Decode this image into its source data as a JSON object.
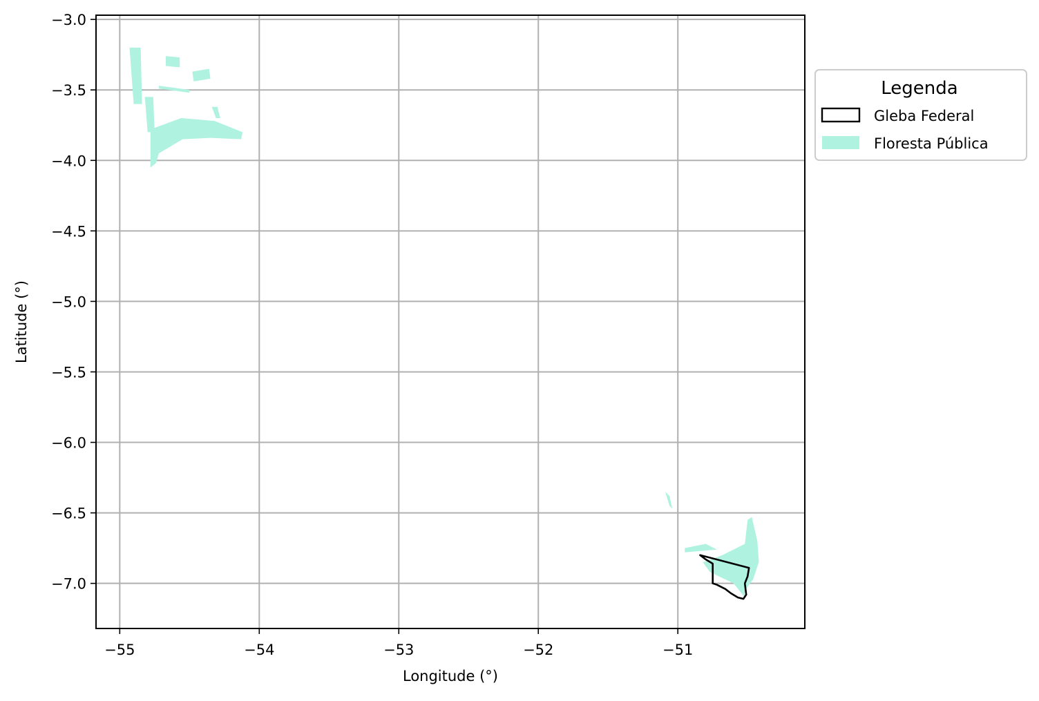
{
  "chart_data": {
    "type": "map",
    "title": "",
    "xlabel": "Longitude (°)",
    "ylabel": "Latitude (°)",
    "xlim": [
      -55.17,
      -50.09
    ],
    "ylim": [
      -7.32,
      -2.97
    ],
    "grid": true,
    "xticks": [
      -55,
      -54,
      -53,
      -52,
      -51
    ],
    "yticks": [
      -3.0,
      -3.5,
      -4.0,
      -4.5,
      -5.0,
      -5.5,
      -6.0,
      -6.5,
      -7.0
    ],
    "xtick_labels": [
      "−55",
      "−54",
      "−53",
      "−52",
      "−51"
    ],
    "ytick_labels": [
      "−3.0",
      "−3.5",
      "−4.0",
      "−4.5",
      "−5.0",
      "−5.5",
      "−6.0",
      "−6.5",
      "−7.0"
    ],
    "legend": {
      "title": "Legenda",
      "placement": "outside-upper-right",
      "entries": [
        {
          "label": "Gleba Federal",
          "style": "outline",
          "color": "#000000"
        },
        {
          "label": "Floresta Pública",
          "style": "fill",
          "color": "#aef2df"
        }
      ]
    },
    "layers": {
      "floresta_publica": {
        "color": "#aef2df",
        "features": [
          {
            "name": "nw-1",
            "coords": [
              [
                -54.93,
                -3.2
              ],
              [
                -54.85,
                -3.2
              ],
              [
                -54.84,
                -3.6
              ],
              [
                -54.9,
                -3.6
              ]
            ]
          },
          {
            "name": "nw-2",
            "coords": [
              [
                -54.82,
                -3.55
              ],
              [
                -54.76,
                -3.55
              ],
              [
                -54.75,
                -3.8
              ],
              [
                -54.8,
                -3.8
              ]
            ]
          },
          {
            "name": "nw-3",
            "coords": [
              [
                -54.67,
                -3.26
              ],
              [
                -54.57,
                -3.27
              ],
              [
                -54.57,
                -3.34
              ],
              [
                -54.67,
                -3.33
              ]
            ]
          },
          {
            "name": "nw-4",
            "coords": [
              [
                -54.48,
                -3.37
              ],
              [
                -54.36,
                -3.35
              ],
              [
                -54.35,
                -3.42
              ],
              [
                -54.47,
                -3.44
              ]
            ]
          },
          {
            "name": "nw-5",
            "coords": [
              [
                -54.34,
                -3.62
              ],
              [
                -54.3,
                -3.62
              ],
              [
                -54.28,
                -3.7
              ],
              [
                -54.31,
                -3.7
              ]
            ]
          },
          {
            "name": "nw-6",
            "coords": [
              [
                -54.78,
                -3.78
              ],
              [
                -54.56,
                -3.7
              ],
              [
                -54.32,
                -3.72
              ],
              [
                -54.12,
                -3.8
              ],
              [
                -54.13,
                -3.85
              ],
              [
                -54.35,
                -3.84
              ],
              [
                -54.55,
                -3.85
              ],
              [
                -54.72,
                -3.95
              ],
              [
                -54.74,
                -4.02
              ],
              [
                -54.78,
                -4.05
              ]
            ]
          },
          {
            "name": "nw-7",
            "coords": [
              [
                -54.72,
                -3.47
              ],
              [
                -54.5,
                -3.5
              ],
              [
                -54.5,
                -3.52
              ],
              [
                -54.72,
                -3.49
              ]
            ]
          },
          {
            "name": "se-1",
            "coords": [
              [
                -50.68,
                -6.8
              ],
              [
                -50.52,
                -6.72
              ],
              [
                -50.5,
                -6.55
              ],
              [
                -50.47,
                -6.53
              ],
              [
                -50.43,
                -6.7
              ],
              [
                -50.42,
                -6.85
              ],
              [
                -50.46,
                -6.97
              ],
              [
                -50.52,
                -7.05
              ],
              [
                -50.52,
                -7.1
              ],
              [
                -50.6,
                -7.0
              ],
              [
                -50.77,
                -6.92
              ],
              [
                -50.82,
                -6.85
              ]
            ]
          },
          {
            "name": "se-2",
            "coords": [
              [
                -50.95,
                -6.75
              ],
              [
                -50.8,
                -6.72
              ],
              [
                -50.72,
                -6.76
              ],
              [
                -50.95,
                -6.78
              ]
            ]
          },
          {
            "name": "se-3",
            "coords": [
              [
                -51.09,
                -6.35
              ],
              [
                -51.06,
                -6.38
              ],
              [
                -51.04,
                -6.47
              ],
              [
                -51.06,
                -6.45
              ]
            ]
          }
        ]
      },
      "gleba_federal": {
        "color": "#000000",
        "features": [
          {
            "name": "gleba-1",
            "coords": [
              [
                -50.84,
                -6.8
              ],
              [
                -50.49,
                -6.89
              ],
              [
                -50.5,
                -6.95
              ],
              [
                -50.52,
                -7.0
              ],
              [
                -50.51,
                -7.08
              ],
              [
                -50.53,
                -7.11
              ],
              [
                -50.57,
                -7.1
              ],
              [
                -50.62,
                -7.07
              ],
              [
                -50.66,
                -7.04
              ],
              [
                -50.72,
                -7.01
              ],
              [
                -50.75,
                -7.0
              ],
              [
                -50.75,
                -6.86
              ],
              [
                -50.8,
                -6.83
              ]
            ]
          }
        ]
      }
    }
  }
}
